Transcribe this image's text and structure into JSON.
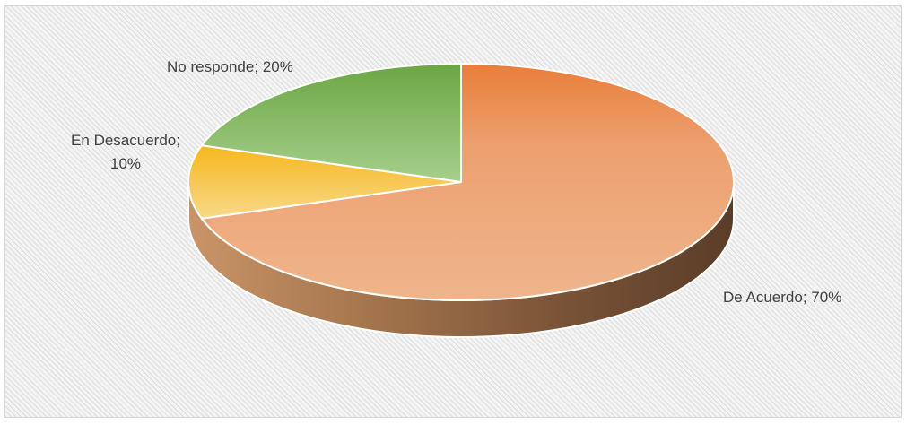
{
  "chart_data": {
    "type": "pie",
    "style": "3d",
    "categories": [
      "De Acuerdo",
      "En Desacuerdo",
      "No responde"
    ],
    "values": [
      70,
      10,
      20
    ],
    "unit": "%",
    "colors": {
      "De Acuerdo": "#ED7D31",
      "En Desacuerdo": "#FFC000",
      "No responde": "#70AD47"
    },
    "data_labels": {
      "De Acuerdo": "De Acuerdo; 70%",
      "En Desacuerdo_line1": "En Desacuerdo;",
      "En Desacuerdo_line2": "10%",
      "No responde": "No responde; 20%"
    },
    "legend": "none",
    "grid": false
  }
}
